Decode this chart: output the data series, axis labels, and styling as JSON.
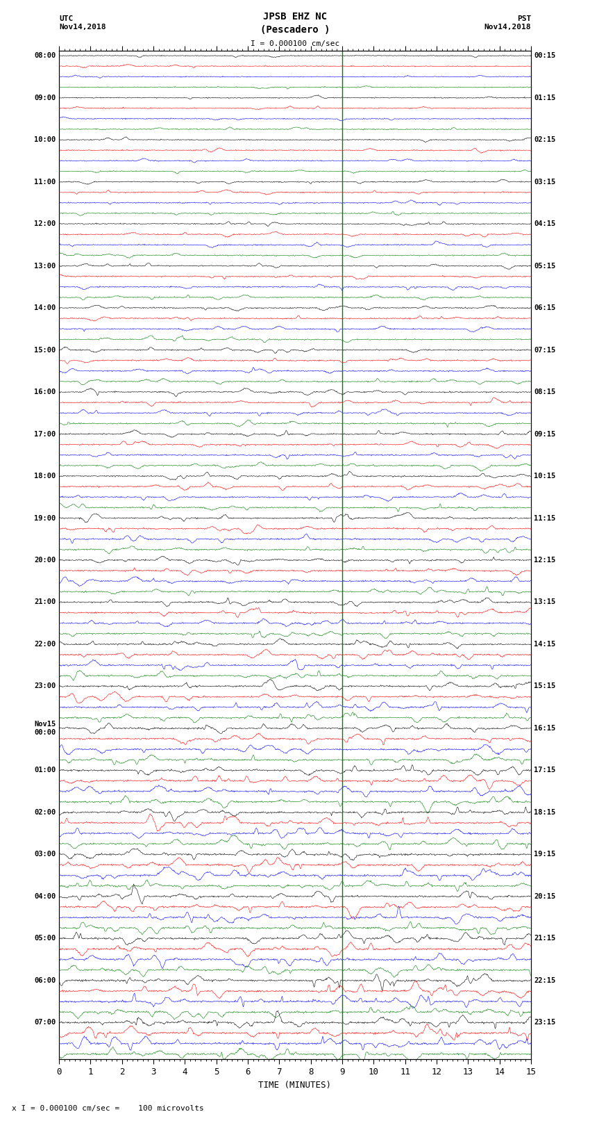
{
  "title_line1": "JPSB EHZ NC",
  "title_line2": "(Pescadero )",
  "scale_label": "I = 0.000100 cm/sec",
  "bottom_label": "x I = 0.000100 cm/sec =    100 microvolts",
  "utc_label": "UTC\nNov14,2018",
  "pst_label": "PST\nNov14,2018",
  "xlabel": "TIME (MINUTES)",
  "x_ticks": [
    0,
    1,
    2,
    3,
    4,
    5,
    6,
    7,
    8,
    9,
    10,
    11,
    12,
    13,
    14,
    15
  ],
  "colors": [
    "black",
    "red",
    "blue",
    "green"
  ],
  "num_rows": 24,
  "traces_per_row": 4,
  "left_times_utc": [
    "08:00",
    "09:00",
    "10:00",
    "11:00",
    "12:00",
    "13:00",
    "14:00",
    "15:00",
    "16:00",
    "17:00",
    "18:00",
    "19:00",
    "20:00",
    "21:00",
    "22:00",
    "23:00",
    "Nov15\n00:00",
    "01:00",
    "02:00",
    "03:00",
    "04:00",
    "05:00",
    "06:00",
    "07:00"
  ],
  "right_times_pst": [
    "00:15",
    "01:15",
    "02:15",
    "03:15",
    "04:15",
    "05:15",
    "06:15",
    "07:15",
    "08:15",
    "09:15",
    "10:15",
    "11:15",
    "12:15",
    "13:15",
    "14:15",
    "15:15",
    "16:15",
    "17:15",
    "18:15",
    "19:15",
    "20:15",
    "21:15",
    "22:15",
    "23:15"
  ],
  "background_color": "white",
  "fig_width": 8.5,
  "fig_height": 16.13,
  "dpi": 100,
  "green_line_x": 9.0,
  "amplitude_scale": 0.35,
  "noise_scale": 0.06,
  "num_points": 900
}
